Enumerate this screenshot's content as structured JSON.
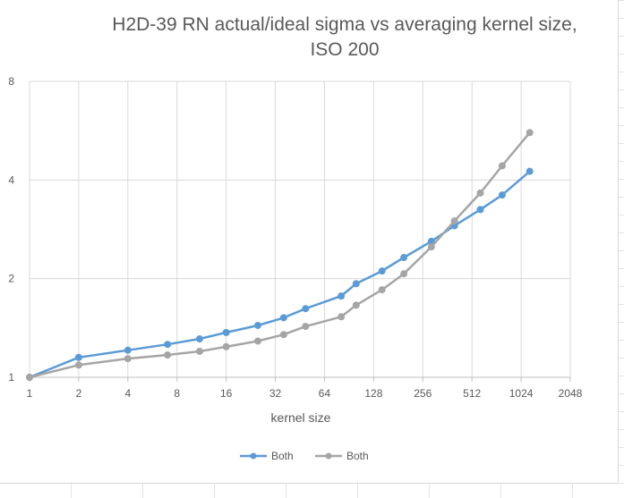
{
  "chart_data": {
    "type": "line",
    "title_line1": "H2D-39 RN actual/ideal sigma vs averaging kernel size,",
    "title_line2": "ISO 200",
    "xlabel": "kernel size",
    "ylabel": "",
    "x_scale": "log2",
    "y_scale": "log2",
    "xlim": [
      1,
      2048
    ],
    "ylim": [
      1,
      8
    ],
    "x_ticks": [
      "1",
      "2",
      "4",
      "8",
      "16",
      "32",
      "64",
      "128",
      "256",
      "512",
      "1024",
      "2048"
    ],
    "y_ticks": [
      "1",
      "2",
      "4",
      "8"
    ],
    "grid": true,
    "legend_position": "bottom",
    "series": [
      {
        "name": "Both",
        "color": "#5b9bd5",
        "x": [
          1,
          2,
          4,
          7,
          11,
          16,
          25,
          36,
          49,
          81,
          100,
          144,
          196,
          289,
          400,
          576,
          784,
          1156
        ],
        "y": [
          1,
          1.15,
          1.21,
          1.26,
          1.31,
          1.37,
          1.44,
          1.52,
          1.62,
          1.77,
          1.93,
          2.11,
          2.32,
          2.6,
          2.9,
          3.25,
          3.6,
          4.25
        ]
      },
      {
        "name": "Both",
        "color": "#a5a5a5",
        "x": [
          1,
          2,
          4,
          7,
          11,
          16,
          25,
          36,
          49,
          81,
          100,
          144,
          196,
          289,
          400,
          576,
          784,
          1156
        ],
        "y": [
          1,
          1.09,
          1.14,
          1.17,
          1.2,
          1.24,
          1.29,
          1.35,
          1.43,
          1.53,
          1.66,
          1.85,
          2.07,
          2.5,
          3.0,
          3.65,
          4.42,
          5.58
        ]
      }
    ]
  }
}
